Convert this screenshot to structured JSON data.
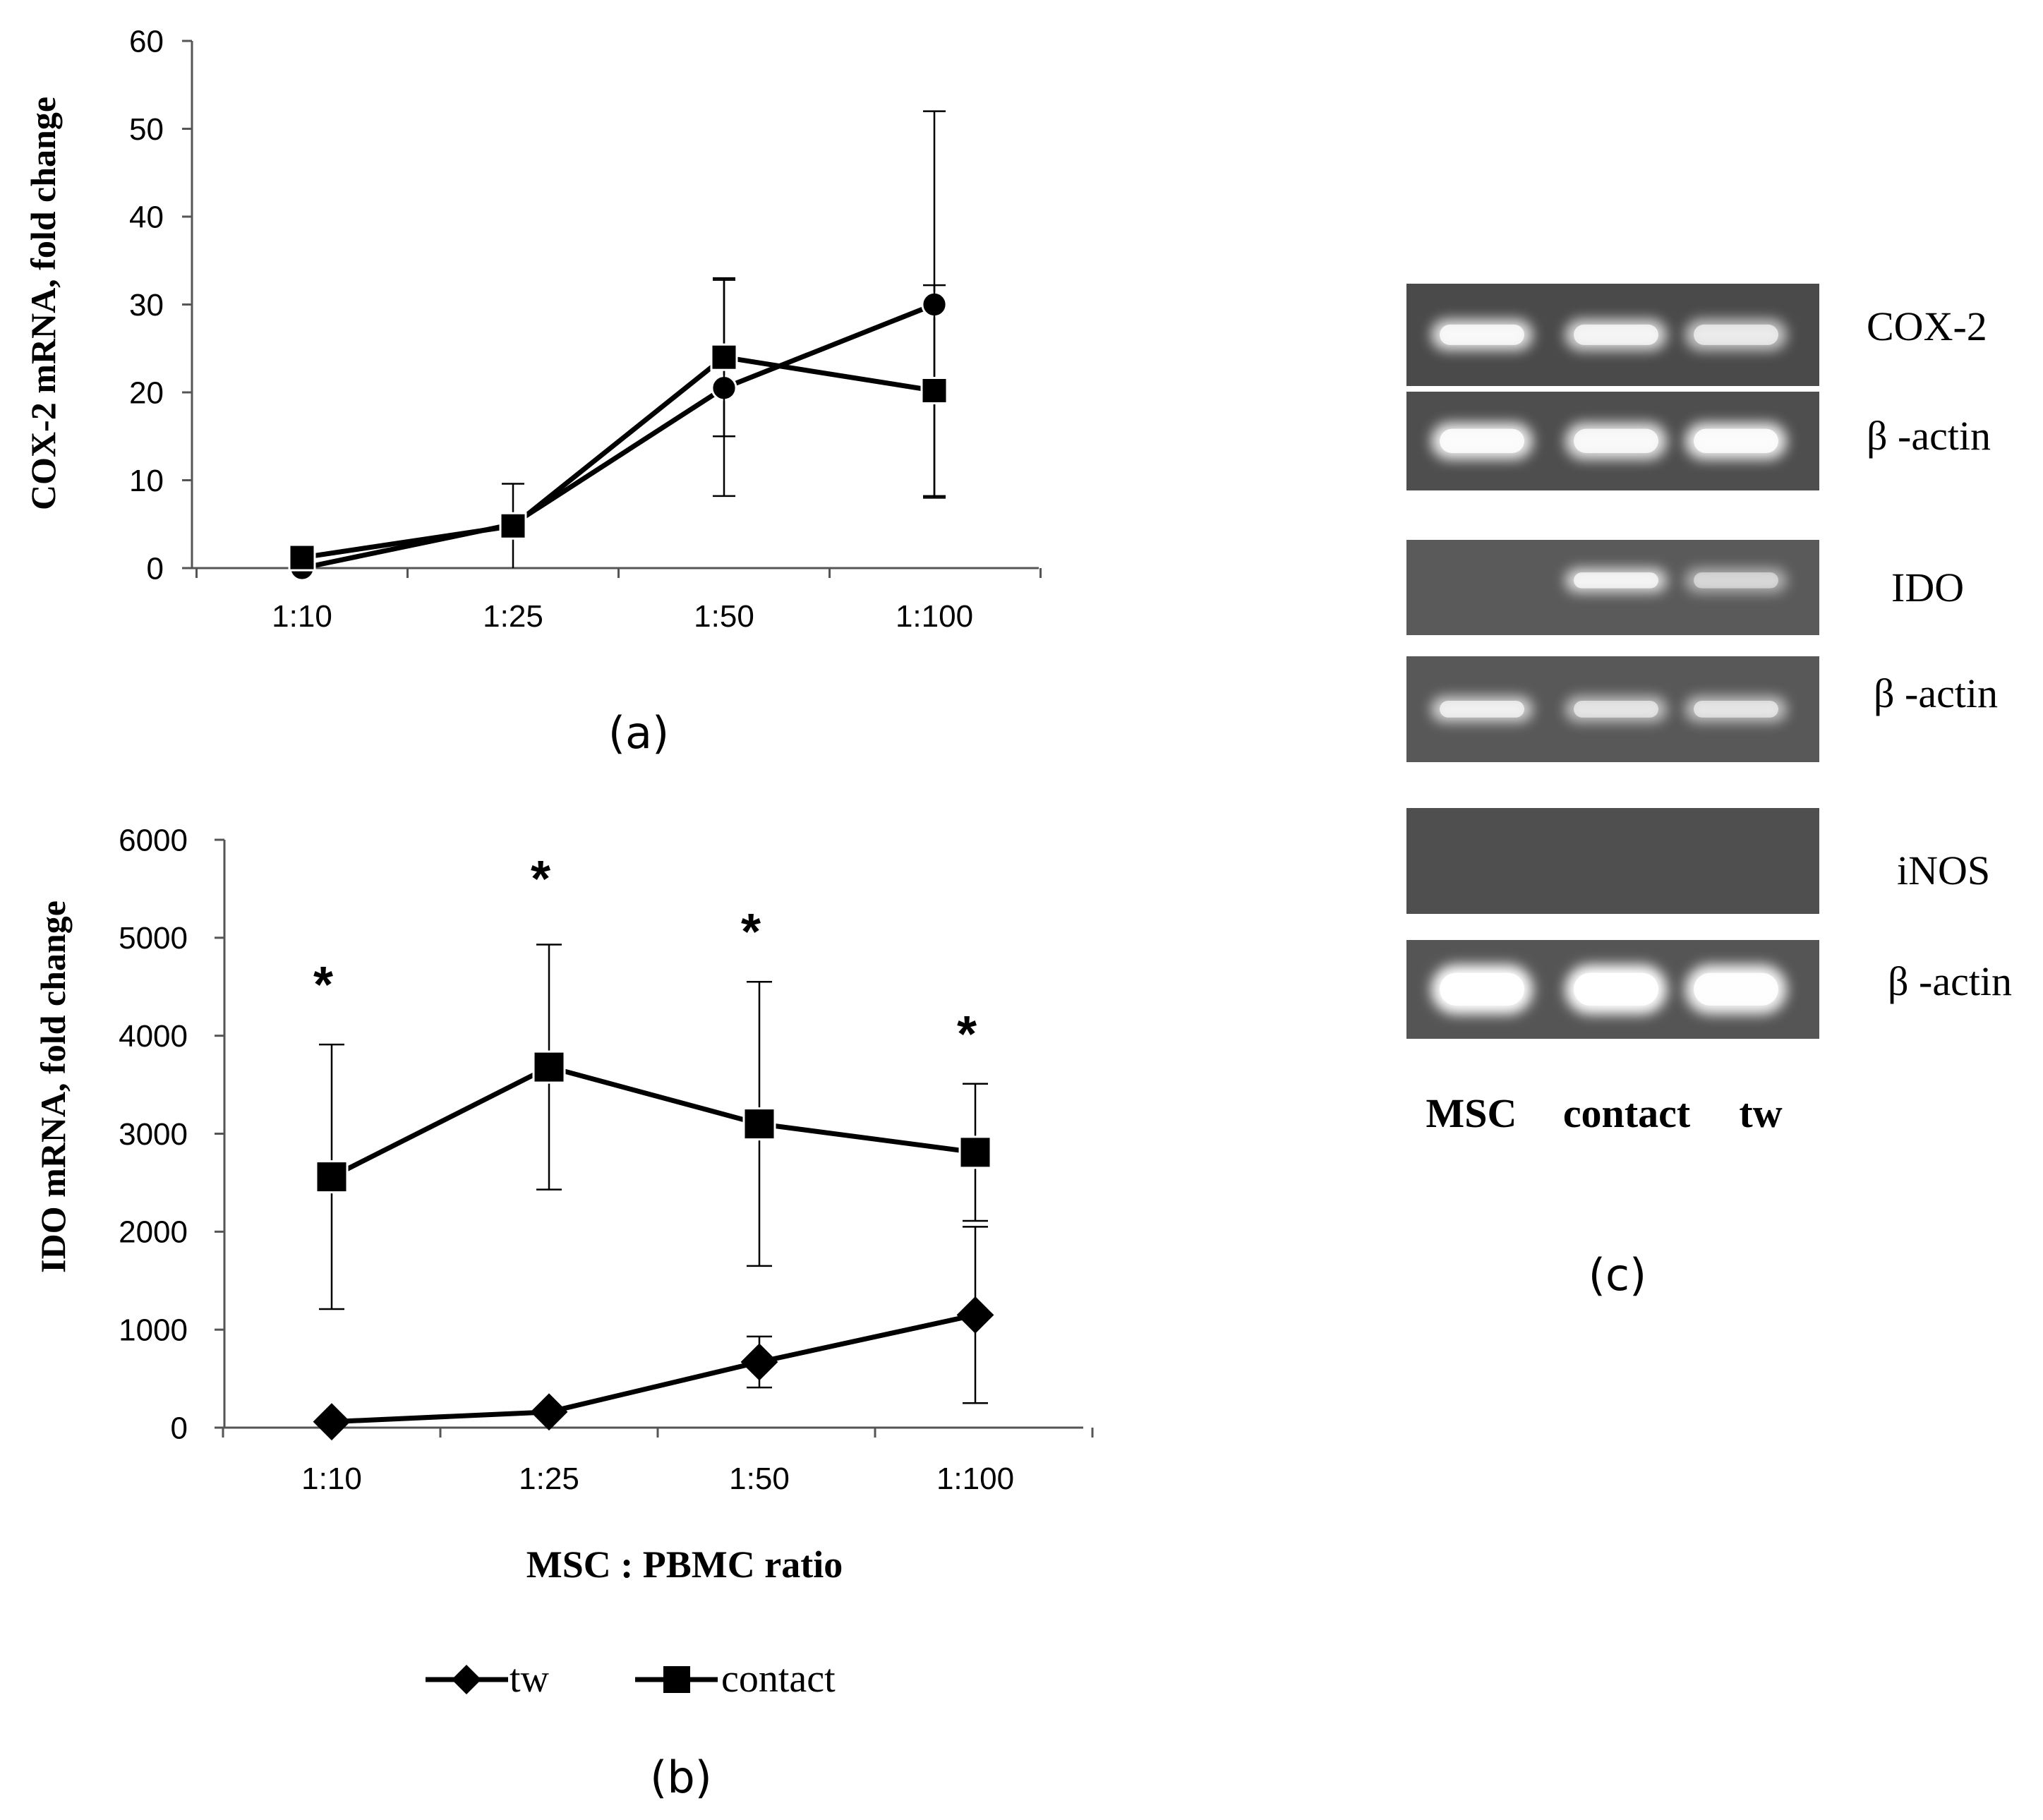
{
  "chart_data": [
    {
      "panel": "(a)",
      "type": "line",
      "ylabel": "COX-2  mRNA, fold change",
      "categories": [
        "1:10",
        "1:25",
        "1:50",
        "1:100"
      ],
      "ylim": [
        0,
        60
      ],
      "yticks": [
        0,
        10,
        20,
        30,
        40,
        50,
        60
      ],
      "series": [
        {
          "name": "tw",
          "marker": "circle",
          "values": [
            0,
            5,
            20.5,
            30
          ],
          "err": [
            0,
            0,
            12.3,
            22
          ]
        },
        {
          "name": "contact",
          "marker": "square",
          "values": [
            1.2,
            4.8,
            24,
            20.2
          ],
          "err": [
            0,
            4.8,
            9,
            12
          ]
        }
      ]
    },
    {
      "panel": "(b)",
      "type": "line",
      "ylabel": "IDO mRNA, fold change",
      "xlabel": "MSC : PBMC ratio",
      "categories": [
        "1:10",
        "1:25",
        "1:50",
        "1:100"
      ],
      "ylim": [
        0,
        6000
      ],
      "yticks": [
        0,
        1000,
        2000,
        3000,
        4000,
        5000,
        6000
      ],
      "significance": [
        "*",
        "*",
        "*",
        "*"
      ],
      "legend": [
        "tw",
        "contact"
      ],
      "series": [
        {
          "name": "tw",
          "marker": "diamond",
          "values": [
            60,
            160,
            670,
            1150
          ],
          "err": [
            0,
            0,
            260,
            900
          ]
        },
        {
          "name": "contact",
          "marker": "square",
          "values": [
            2560,
            3680,
            3100,
            2810
          ],
          "err": [
            1350,
            1250,
            1450,
            700
          ]
        }
      ]
    }
  ],
  "gel": {
    "panel": "(c)",
    "lanes": [
      "MSC",
      "contact",
      "tw"
    ],
    "rows": [
      {
        "label": "COX-2",
        "bands": [
          0.85,
          0.8,
          0.7
        ]
      },
      {
        "label": "β -actin",
        "bands": [
          0.9,
          0.85,
          0.9
        ]
      },
      {
        "label": "IDO",
        "bands": [
          0,
          0.8,
          0.55
        ]
      },
      {
        "label": "β -actin",
        "bands": [
          0.75,
          0.65,
          0.65
        ]
      },
      {
        "label": "iNOS",
        "bands": [
          0,
          0,
          0
        ]
      },
      {
        "label": "β -actin",
        "bands": [
          1,
          1,
          0.95
        ]
      }
    ]
  }
}
